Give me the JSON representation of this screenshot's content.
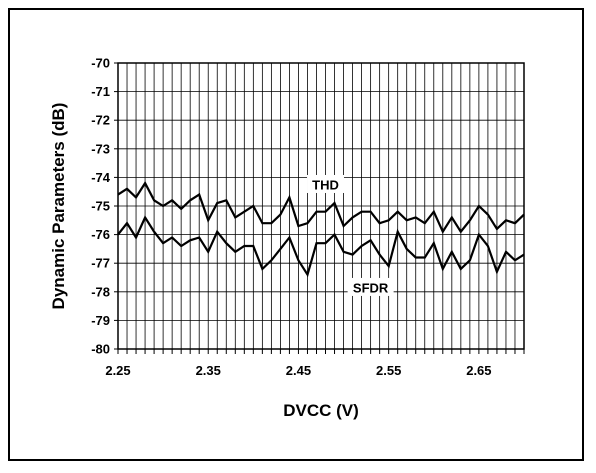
{
  "chart_data": {
    "type": "line",
    "title": "",
    "xlabel": "DVCC (V)",
    "ylabel": "Dynamic Parameters (dB)",
    "xlim": [
      2.25,
      2.7
    ],
    "ylim": [
      -80,
      -70
    ],
    "x_ticks": [
      "2.25",
      "2.35",
      "2.45",
      "2.55",
      "2.65"
    ],
    "x_tick_values": [
      2.25,
      2.35,
      2.45,
      2.55,
      2.65
    ],
    "y_ticks": [
      "-70",
      "-71",
      "-72",
      "-73",
      "-74",
      "-75",
      "-76",
      "-77",
      "-78",
      "-79",
      "-80"
    ],
    "y_tick_values": [
      -70,
      -71,
      -72,
      -73,
      -74,
      -75,
      -76,
      -77,
      -78,
      -79,
      -80
    ],
    "grid": true,
    "x": [
      2.25,
      2.26,
      2.27,
      2.28,
      2.29,
      2.3,
      2.31,
      2.32,
      2.33,
      2.34,
      2.35,
      2.36,
      2.37,
      2.38,
      2.39,
      2.4,
      2.41,
      2.42,
      2.43,
      2.44,
      2.45,
      2.46,
      2.47,
      2.48,
      2.49,
      2.5,
      2.51,
      2.52,
      2.53,
      2.54,
      2.55,
      2.56,
      2.57,
      2.58,
      2.59,
      2.6,
      2.61,
      2.62,
      2.63,
      2.64,
      2.65,
      2.66,
      2.67,
      2.68,
      2.69,
      2.7
    ],
    "series": [
      {
        "name": "THD",
        "label_at": [
          2.48,
          -74.3
        ],
        "values": [
          -74.6,
          -74.4,
          -74.7,
          -74.2,
          -74.8,
          -75.0,
          -74.8,
          -75.1,
          -74.8,
          -74.6,
          -75.5,
          -74.9,
          -74.8,
          -75.4,
          -75.2,
          -75.0,
          -75.6,
          -75.6,
          -75.3,
          -74.7,
          -75.7,
          -75.6,
          -75.2,
          -75.2,
          -74.9,
          -75.7,
          -75.4,
          -75.2,
          -75.2,
          -75.6,
          -75.5,
          -75.2,
          -75.5,
          -75.4,
          -75.6,
          -75.2,
          -75.9,
          -75.4,
          -75.9,
          -75.5,
          -75.0,
          -75.3,
          -75.8,
          -75.5,
          -75.6,
          -75.3
        ]
      },
      {
        "name": "SFDR",
        "label_at": [
          2.53,
          -77.9
        ],
        "values": [
          -76.0,
          -75.6,
          -76.1,
          -75.4,
          -75.9,
          -76.3,
          -76.1,
          -76.4,
          -76.2,
          -76.1,
          -76.6,
          -75.9,
          -76.3,
          -76.6,
          -76.4,
          -76.4,
          -77.2,
          -76.9,
          -76.5,
          -76.1,
          -76.9,
          -77.4,
          -76.3,
          -76.3,
          -76.0,
          -76.6,
          -76.7,
          -76.4,
          -76.2,
          -76.7,
          -77.1,
          -75.9,
          -76.5,
          -76.8,
          -76.8,
          -76.3,
          -77.2,
          -76.6,
          -77.2,
          -76.9,
          -76.0,
          -76.4,
          -77.3,
          -76.6,
          -76.9,
          -76.7
        ]
      }
    ]
  }
}
